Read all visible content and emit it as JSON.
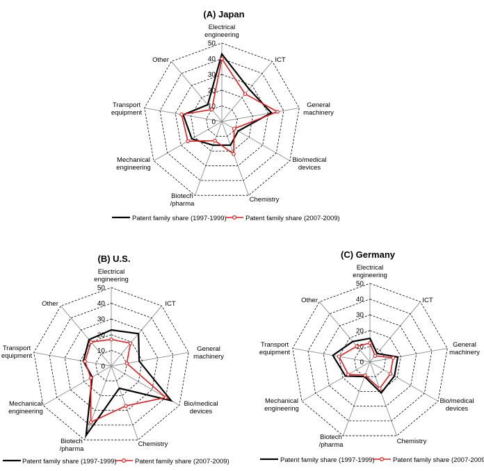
{
  "chart_data": [
    {
      "type": "radar",
      "title": "(A) Japan",
      "categories": [
        "Electrical engineering",
        "ICT",
        "General machinery",
        "Bio/medical devices",
        "Chemistry",
        "Biotech /pharma",
        "Mechanical engineering",
        "Transport equipment",
        "Other"
      ],
      "rlim": [
        0,
        50
      ],
      "ticks": [
        "0",
        "10",
        "20",
        "30",
        "40",
        "50"
      ],
      "series": [
        {
          "name": "Patent family share (1997-1999)",
          "color": "#000000",
          "values": [
            43,
            27,
            32,
            12,
            16,
            16,
            22,
            25,
            14
          ]
        },
        {
          "name": "Patent family share (2007-2009)",
          "color": "#e31a1c",
          "values": [
            40,
            23,
            36,
            9,
            22,
            13,
            25,
            26,
            10
          ]
        }
      ]
    },
    {
      "type": "radar",
      "title": "(B) U.S.",
      "categories": [
        "Electrical engineering",
        "ICT",
        "General machinery",
        "Bio/medical devices",
        "Chemistry",
        "Biotech /pharma",
        "Mechanical engineering",
        "Transport equipment",
        "Other"
      ],
      "rlim": [
        0,
        50
      ],
      "ticks": [
        "0",
        "10",
        "20",
        "30",
        "40",
        "50"
      ],
      "series": [
        {
          "name": "Patent family share (1997-1999)",
          "color": "#000000",
          "values": [
            23,
            27,
            18,
            44,
            15,
            47,
            14,
            18,
            22
          ]
        },
        {
          "name": "Patent family share (2007-2009)",
          "color": "#e31a1c",
          "values": [
            17,
            19,
            10,
            40,
            27,
            38,
            15,
            17,
            20
          ]
        }
      ]
    },
    {
      "type": "radar",
      "title": "(C) Germany",
      "categories": [
        "Electrical engineering",
        "ICT",
        "General machinery",
        "Bio/medical devices",
        "Chemistry",
        "Biotech /pharma",
        "Mechanical engineering",
        "Transport equipment",
        "Other"
      ],
      "rlim": [
        0,
        50
      ],
      "ticks": [
        "0",
        "10",
        "20",
        "30",
        "40",
        "50"
      ],
      "series": [
        {
          "name": "Patent family share (1997-1999)",
          "color": "#000000",
          "values": [
            15,
            7,
            18,
            18,
            21,
            10,
            18,
            24,
            17
          ]
        },
        {
          "name": "Patent family share (2007-2009)",
          "color": "#e31a1c",
          "values": [
            12,
            5,
            15,
            15,
            18,
            9,
            16,
            20,
            13
          ]
        }
      ]
    }
  ]
}
